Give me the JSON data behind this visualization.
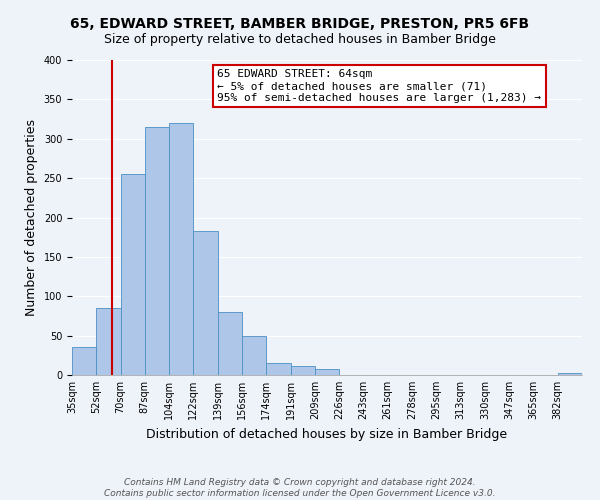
{
  "title": "65, EDWARD STREET, BAMBER BRIDGE, PRESTON, PR5 6FB",
  "subtitle": "Size of property relative to detached houses in Bamber Bridge",
  "xlabel": "Distribution of detached houses by size in Bamber Bridge",
  "ylabel": "Number of detached properties",
  "bin_labels": [
    "35sqm",
    "52sqm",
    "70sqm",
    "87sqm",
    "104sqm",
    "122sqm",
    "139sqm",
    "156sqm",
    "174sqm",
    "191sqm",
    "209sqm",
    "226sqm",
    "243sqm",
    "261sqm",
    "278sqm",
    "295sqm",
    "313sqm",
    "330sqm",
    "347sqm",
    "365sqm",
    "382sqm"
  ],
  "bar_heights": [
    35,
    85,
    255,
    315,
    320,
    183,
    80,
    50,
    15,
    12,
    8,
    0,
    0,
    0,
    0,
    0,
    0,
    0,
    0,
    0,
    2
  ],
  "bar_color": "#aec6e8",
  "bar_edge_color": "#4a90c4",
  "ylim": [
    0,
    400
  ],
  "yticks": [
    0,
    50,
    100,
    150,
    200,
    250,
    300,
    350,
    400
  ],
  "property_line_x": 64,
  "bin_edges": [
    35,
    52,
    70,
    87,
    104,
    122,
    139,
    156,
    174,
    191,
    209,
    226,
    243,
    261,
    278,
    295,
    313,
    330,
    347,
    365,
    382
  ],
  "annotation_title": "65 EDWARD STREET: 64sqm",
  "annotation_line1": "← 5% of detached houses are smaller (71)",
  "annotation_line2": "95% of semi-detached houses are larger (1,283) →",
  "annotation_box_color": "#ffffff",
  "annotation_box_edge": "#cc0000",
  "red_line_color": "#cc0000",
  "footer_line1": "Contains HM Land Registry data © Crown copyright and database right 2024.",
  "footer_line2": "Contains public sector information licensed under the Open Government Licence v3.0.",
  "background_color": "#eef2f9",
  "grid_color": "#ffffff",
  "title_fontsize": 10,
  "subtitle_fontsize": 9,
  "axis_label_fontsize": 9,
  "tick_fontsize": 7,
  "footer_fontsize": 6.5,
  "annotation_fontsize": 8
}
